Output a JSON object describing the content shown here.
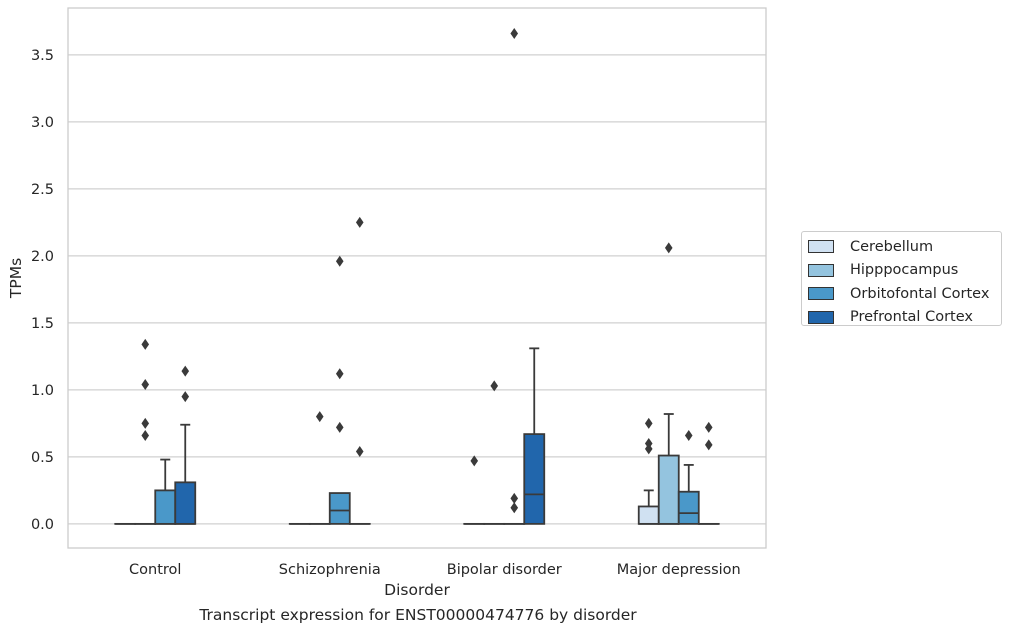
{
  "chart_data": {
    "type": "box",
    "xlabel": "Disorder",
    "ylabel": "TPMs",
    "caption": "Transcript expression for ENST00000474776 by disorder",
    "ylim": [
      -0.18,
      3.85
    ],
    "yticks": [
      "0.0",
      "0.5",
      "1.0",
      "1.5",
      "2.0",
      "2.5",
      "3.0",
      "3.5"
    ],
    "grid": "horizontal",
    "legend_position": "right",
    "categories": [
      "Control",
      "Schizophrenia",
      "Bipolar disorder",
      "Major depression"
    ],
    "series": [
      {
        "name": "Cerebellum",
        "color": "#d0e1f2",
        "boxes": [
          {
            "q1": 0,
            "median": 0,
            "q3": 0,
            "whisker_low": 0,
            "whisker_high": 0,
            "outliers": []
          },
          {
            "q1": 0,
            "median": 0,
            "q3": 0,
            "whisker_low": 0,
            "whisker_high": 0,
            "outliers": []
          },
          {
            "q1": 0,
            "median": 0,
            "q3": 0,
            "whisker_low": 0,
            "whisker_high": 0,
            "outliers": [
              0.47
            ]
          },
          {
            "q1": 0,
            "median": 0,
            "q3": 0.13,
            "whisker_low": 0,
            "whisker_high": 0.25,
            "outliers": [
              0.56,
              0.6,
              0.75
            ]
          }
        ]
      },
      {
        "name": "Hipppocampus",
        "color": "#94c4df",
        "boxes": [
          {
            "q1": 0,
            "median": 0,
            "q3": 0,
            "whisker_low": 0,
            "whisker_high": 0,
            "outliers": [
              0.66,
              0.75,
              1.04,
              1.34
            ]
          },
          {
            "q1": 0,
            "median": 0,
            "q3": 0,
            "whisker_low": 0,
            "whisker_high": 0,
            "outliers": [
              0.8
            ]
          },
          {
            "q1": 0,
            "median": 0,
            "q3": 0,
            "whisker_low": 0,
            "whisker_high": 0,
            "outliers": [
              1.03
            ]
          },
          {
            "q1": 0,
            "median": 0,
            "q3": 0.51,
            "whisker_low": 0,
            "whisker_high": 0.82,
            "outliers": [
              2.06
            ]
          }
        ]
      },
      {
        "name": "Orbitofontal Cortex",
        "color": "#4a98c9",
        "boxes": [
          {
            "q1": 0,
            "median": 0,
            "q3": 0.25,
            "whisker_low": 0,
            "whisker_high": 0.48,
            "outliers": []
          },
          {
            "q1": 0,
            "median": 0.1,
            "q3": 0.23,
            "whisker_low": 0,
            "whisker_high": 0.23,
            "outliers": [
              0.72,
              1.12,
              1.96
            ]
          },
          {
            "q1": 0,
            "median": 0,
            "q3": 0,
            "whisker_low": 0,
            "whisker_high": 0,
            "outliers": [
              0.12,
              0.19,
              3.66
            ]
          },
          {
            "q1": 0,
            "median": 0.08,
            "q3": 0.24,
            "whisker_low": 0,
            "whisker_high": 0.44,
            "outliers": [
              0.66
            ]
          }
        ]
      },
      {
        "name": "Prefrontal Cortex",
        "color": "#2166ac",
        "boxes": [
          {
            "q1": 0,
            "median": 0,
            "q3": 0.31,
            "whisker_low": 0,
            "whisker_high": 0.74,
            "outliers": [
              0.95,
              1.14
            ]
          },
          {
            "q1": 0,
            "median": 0,
            "q3": 0,
            "whisker_low": 0,
            "whisker_high": 0,
            "outliers": [
              0.54,
              2.25
            ]
          },
          {
            "q1": 0,
            "median": 0.22,
            "q3": 0.67,
            "whisker_low": 0,
            "whisker_high": 1.31,
            "outliers": []
          },
          {
            "q1": 0,
            "median": 0,
            "q3": 0,
            "whisker_low": 0,
            "whisker_high": 0,
            "outliers": [
              0.59,
              0.72
            ]
          }
        ]
      }
    ]
  }
}
